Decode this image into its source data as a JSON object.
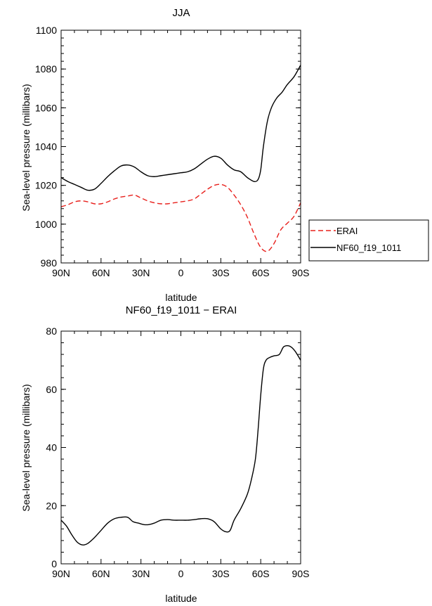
{
  "chart_data": [
    {
      "type": "line",
      "title": "JJA",
      "xlabel": "latitude",
      "ylabel": "Sea-level pressure (millibars)",
      "ylim": [
        980,
        1100
      ],
      "xlim": [
        90,
        -90
      ],
      "x_tick_labels": [
        "90N",
        "60N",
        "30N",
        "0",
        "30S",
        "60S",
        "90S"
      ],
      "y_tick_labels": [
        "980",
        "1000",
        "1020",
        "1040",
        "1060",
        "1080",
        "1100"
      ],
      "x_unit_note": "latitude in degrees; positive = N, negative = S",
      "legend": {
        "position": "right",
        "entries": [
          "ERAI",
          "NF60_f19_1011"
        ]
      },
      "series": [
        {
          "name": "ERAI",
          "color": "#e8201c",
          "style": "dashed",
          "points": [
            [
              90,
              1009
            ],
            [
              85,
              1010
            ],
            [
              80,
              1011.5
            ],
            [
              75,
              1012
            ],
            [
              70,
              1011.5
            ],
            [
              65,
              1010.5
            ],
            [
              60,
              1010.5
            ],
            [
              55,
              1011.5
            ],
            [
              50,
              1013
            ],
            [
              45,
              1014
            ],
            [
              40,
              1014.5
            ],
            [
              35,
              1015
            ],
            [
              30,
              1013.5
            ],
            [
              25,
              1012
            ],
            [
              20,
              1011
            ],
            [
              15,
              1010.5
            ],
            [
              10,
              1010.5
            ],
            [
              5,
              1011
            ],
            [
              0,
              1011.5
            ],
            [
              -5,
              1012
            ],
            [
              -10,
              1013
            ],
            [
              -15,
              1015.5
            ],
            [
              -20,
              1018
            ],
            [
              -25,
              1020
            ],
            [
              -30,
              1020.5
            ],
            [
              -35,
              1019
            ],
            [
              -40,
              1015
            ],
            [
              -45,
              1010
            ],
            [
              -50,
              1003.5
            ],
            [
              -55,
              995
            ],
            [
              -60,
              988
            ],
            [
              -65,
              986
            ],
            [
              -70,
              990
            ],
            [
              -75,
              997
            ],
            [
              -80,
              1000.5
            ],
            [
              -85,
              1004
            ],
            [
              -90,
              1011
            ]
          ]
        },
        {
          "name": "NF60_f19_1011",
          "color": "#000000",
          "style": "solid",
          "points": [
            [
              90,
              1024
            ],
            [
              85,
              1022
            ],
            [
              80,
              1020.5
            ],
            [
              75,
              1019
            ],
            [
              70,
              1017.5
            ],
            [
              65,
              1018
            ],
            [
              60,
              1021
            ],
            [
              55,
              1024.5
            ],
            [
              50,
              1027.5
            ],
            [
              45,
              1030
            ],
            [
              40,
              1030.5
            ],
            [
              35,
              1029.5
            ],
            [
              30,
              1027
            ],
            [
              25,
              1025
            ],
            [
              20,
              1024.5
            ],
            [
              15,
              1025
            ],
            [
              10,
              1025.5
            ],
            [
              5,
              1026
            ],
            [
              0,
              1026.5
            ],
            [
              -5,
              1027
            ],
            [
              -10,
              1028.5
            ],
            [
              -15,
              1031
            ],
            [
              -20,
              1033.5
            ],
            [
              -25,
              1035
            ],
            [
              -30,
              1034
            ],
            [
              -35,
              1030.5
            ],
            [
              -40,
              1028
            ],
            [
              -45,
              1027
            ],
            [
              -50,
              1024
            ],
            [
              -55,
              1022
            ],
            [
              -58,
              1023
            ],
            [
              -60,
              1028
            ],
            [
              -62,
              1040
            ],
            [
              -65,
              1053
            ],
            [
              -68,
              1060
            ],
            [
              -72,
              1065
            ],
            [
              -76,
              1068
            ],
            [
              -80,
              1072
            ],
            [
              -85,
              1076
            ],
            [
              -90,
              1082
            ]
          ]
        }
      ]
    },
    {
      "type": "line",
      "title": "NF60_f19_1011 − ERAI",
      "xlabel": "latitude",
      "ylabel": "Sea-level pressure (millibars)",
      "ylim": [
        0,
        80
      ],
      "xlim": [
        90,
        -90
      ],
      "x_tick_labels": [
        "90N",
        "60N",
        "30N",
        "0",
        "30S",
        "60S",
        "90S"
      ],
      "y_tick_labels": [
        "0",
        "20",
        "40",
        "60",
        "80"
      ],
      "x_unit_note": "latitude in degrees; positive = N, negative = S",
      "series": [
        {
          "color": "#000000",
          "style": "solid",
          "points": [
            [
              90,
              15
            ],
            [
              86,
              13
            ],
            [
              82,
              10
            ],
            [
              78,
              7.5
            ],
            [
              74,
              6.5
            ],
            [
              70,
              7
            ],
            [
              65,
              9
            ],
            [
              60,
              11.5
            ],
            [
              55,
              14
            ],
            [
              50,
              15.5
            ],
            [
              45,
              16
            ],
            [
              40,
              16
            ],
            [
              36,
              14.5
            ],
            [
              32,
              14
            ],
            [
              28,
              13.5
            ],
            [
              24,
              13.5
            ],
            [
              20,
              14
            ],
            [
              15,
              15
            ],
            [
              10,
              15.2
            ],
            [
              5,
              15
            ],
            [
              0,
              15
            ],
            [
              -5,
              15
            ],
            [
              -10,
              15.2
            ],
            [
              -15,
              15.5
            ],
            [
              -20,
              15.5
            ],
            [
              -25,
              14.5
            ],
            [
              -30,
              12
            ],
            [
              -34,
              11
            ],
            [
              -37,
              11.5
            ],
            [
              -40,
              15
            ],
            [
              -45,
              19
            ],
            [
              -50,
              24
            ],
            [
              -53,
              29
            ],
            [
              -56,
              36
            ],
            [
              -58,
              46
            ],
            [
              -60,
              58
            ],
            [
              -62,
              67
            ],
            [
              -64,
              70
            ],
            [
              -67,
              71
            ],
            [
              -70,
              71.5
            ],
            [
              -74,
              72
            ],
            [
              -77,
              74.5
            ],
            [
              -80,
              75
            ],
            [
              -83,
              74.5
            ],
            [
              -86,
              73
            ],
            [
              -90,
              70
            ]
          ]
        }
      ]
    }
  ]
}
